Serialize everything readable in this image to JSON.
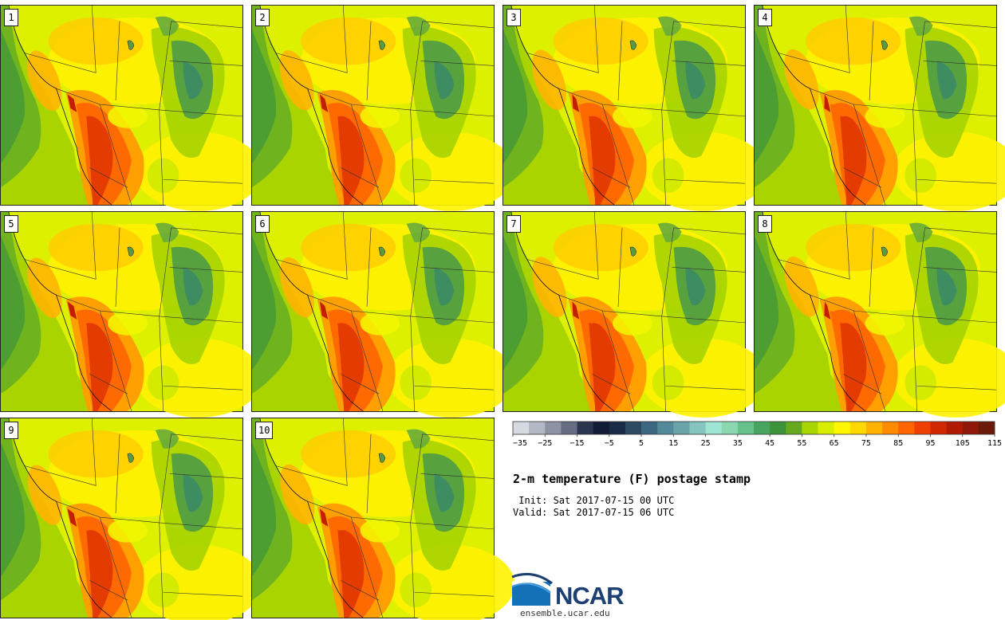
{
  "title": "2-m temperature (F) postage stamp",
  "init_line": "Init: Sat 2017-07-15 00 UTC",
  "valid_line": "Valid: Sat 2017-07-15 06 UTC",
  "members": [
    "1",
    "2",
    "3",
    "4",
    "5",
    "6",
    "7",
    "8",
    "9",
    "10"
  ],
  "colorbar": {
    "ticks": [
      "-35",
      "-25",
      "-15",
      "-5",
      "5",
      "15",
      "25",
      "35",
      "45",
      "55",
      "65",
      "75",
      "85",
      "95",
      "105",
      "115"
    ],
    "colors": [
      "#d7d9e0",
      "#b4b8c4",
      "#8d93a3",
      "#666d82",
      "#2b3550",
      "#131c36",
      "#1a2b46",
      "#2c4a62",
      "#3c6780",
      "#538a9a",
      "#6aa4ab",
      "#86c4c0",
      "#9ee4d2",
      "#8bd8b0",
      "#66c28a",
      "#48a560",
      "#3c9238",
      "#65aa1e",
      "#a8d500",
      "#d8ee00",
      "#fff600",
      "#ffd800",
      "#ffb300",
      "#ff8c00",
      "#ff6400",
      "#f04000",
      "#d22800",
      "#b01a00",
      "#8f1808",
      "#6b1a0a"
    ]
  },
  "logo": {
    "text": "NCAR",
    "url": "ensemble.ucar.edu"
  },
  "colors": {
    "ocean_near": "#6fb41e",
    "ocean_far": "#a9d400",
    "land_base": "#ddf000",
    "mountain_green": "#4e9c45",
    "hot": "#ff6a00",
    "hotter": "#e43b00"
  }
}
